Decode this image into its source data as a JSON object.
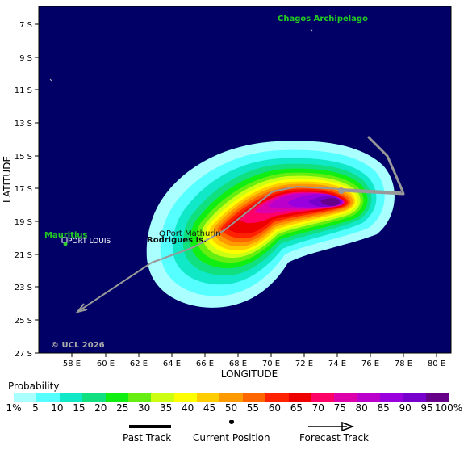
{
  "map": {
    "lat_labels": [
      "7 S",
      "9 S",
      "11 S",
      "13 S",
      "15 S",
      "17 S",
      "19 S",
      "21 S",
      "23 S",
      "25 S",
      "27 S"
    ],
    "lon_labels": [
      "58 E",
      "60 E",
      "62 E",
      "64 E",
      "66 E",
      "68 E",
      "70 E",
      "72 E",
      "74 E",
      "76 E",
      "78 E",
      "80 E"
    ],
    "ylabel": "LATITUDE",
    "xlabel": "LONGITUDE",
    "background_color": "#000066",
    "places": {
      "chagos": "Chagos Archipelago",
      "mauritius": "Mauritius",
      "port_louis": "PORT LOUIS",
      "port_mathurin": "Port Mathurin",
      "rodrigues": "Rodrigues Is."
    },
    "copyright": "© UCL 2026",
    "track_color": "#999999"
  },
  "legend": {
    "title": "Probability",
    "ticks": [
      "1%",
      "5",
      "10",
      "15",
      "20",
      "25",
      "30",
      "35",
      "40",
      "45",
      "50",
      "55",
      "60",
      "65",
      "70",
      "75",
      "80",
      "85",
      "90",
      "95",
      "100%"
    ],
    "colors": [
      "#aaffff",
      "#55ffff",
      "#11e8c8",
      "#11e080",
      "#11ee11",
      "#66ee11",
      "#ccff11",
      "#ffff00",
      "#ffcc00",
      "#ff9900",
      "#ff6600",
      "#ff2200",
      "#ee0000",
      "#ff0066",
      "#dd00aa",
      "#bb00cc",
      "#9900dd",
      "#7700cc",
      "#660088"
    ],
    "past_track": "Past Track",
    "current_position": "Current Position",
    "forecast_track": "Forecast Track"
  }
}
